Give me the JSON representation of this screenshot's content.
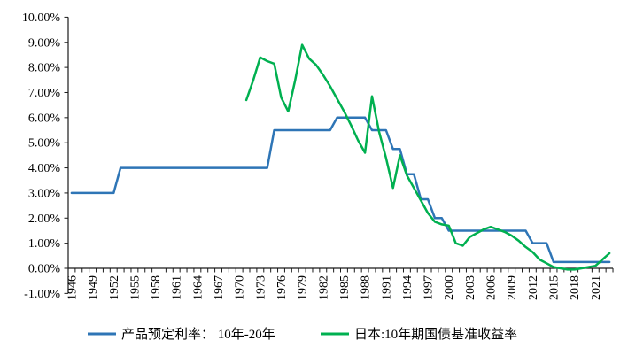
{
  "chart_data": {
    "type": "line",
    "title": "",
    "background_color": "#ffffff",
    "grid": "off",
    "legend_position": "bottom",
    "y_axis": {
      "min": -1,
      "max": 10,
      "step": 1,
      "tick_values": [
        10,
        9,
        8,
        7,
        6,
        5,
        4,
        3,
        2,
        1,
        0,
        -1
      ],
      "tick_labels": [
        "10.00%",
        "9.00%",
        "8.00%",
        "7.00%",
        "6.00%",
        "5.00%",
        "4.00%",
        "3.00%",
        "2.00%",
        "1.00%",
        "0.00%",
        "-1.00%"
      ]
    },
    "x_axis": {
      "first_year": 1946,
      "last_year": 2023,
      "tick_interval_years": 1,
      "label_interval_years": 3,
      "tick_label_years": [
        1946,
        1949,
        1952,
        1955,
        1958,
        1961,
        1964,
        1967,
        1970,
        1973,
        1976,
        1979,
        1982,
        1985,
        1988,
        1991,
        1994,
        1997,
        2000,
        2003,
        2006,
        2009,
        2012,
        2015,
        2018,
        2021
      ]
    },
    "series": [
      {
        "name": "产品预定利率： 10年-20年",
        "color": "#2E75B6",
        "style": "step",
        "segments": [
          {
            "from": 1946,
            "to": 1952,
            "value": 3.0
          },
          {
            "from": 1953,
            "to": 1974,
            "value": 4.0
          },
          {
            "from": 1975,
            "to": 1983,
            "value": 5.5
          },
          {
            "from": 1984,
            "to": 1988,
            "value": 6.0
          },
          {
            "from": 1989,
            "to": 1991,
            "value": 5.5
          },
          {
            "from": 1992,
            "to": 1993,
            "value": 4.75
          },
          {
            "from": 1994,
            "to": 1995,
            "value": 3.75
          },
          {
            "from": 1996,
            "to": 1997,
            "value": 2.75
          },
          {
            "from": 1998,
            "to": 1999,
            "value": 2.0
          },
          {
            "from": 2000,
            "to": 2011,
            "value": 1.5
          },
          {
            "from": 2012,
            "to": 2014,
            "value": 1.0
          },
          {
            "from": 2015,
            "to": 2023,
            "value": 0.25
          }
        ]
      },
      {
        "name": "日本:10年期国债基准收益率",
        "color": "#00B050",
        "style": "line",
        "points": [
          [
            1971,
            6.7
          ],
          [
            1972,
            7.5
          ],
          [
            1973,
            8.4
          ],
          [
            1974,
            8.25
          ],
          [
            1975,
            8.15
          ],
          [
            1976,
            6.8
          ],
          [
            1977,
            6.25
          ],
          [
            1978,
            7.5
          ],
          [
            1979,
            8.9
          ],
          [
            1980,
            8.35
          ],
          [
            1981,
            8.1
          ],
          [
            1982,
            7.7
          ],
          [
            1983,
            7.25
          ],
          [
            1984,
            6.75
          ],
          [
            1985,
            6.25
          ],
          [
            1986,
            5.7
          ],
          [
            1987,
            5.1
          ],
          [
            1988,
            4.6
          ],
          [
            1989,
            6.85
          ],
          [
            1990,
            5.45
          ],
          [
            1991,
            4.4
          ],
          [
            1992,
            3.2
          ],
          [
            1993,
            4.5
          ],
          [
            1994,
            3.7
          ],
          [
            1995,
            3.2
          ],
          [
            1996,
            2.7
          ],
          [
            1997,
            2.2
          ],
          [
            1998,
            1.85
          ],
          [
            1999,
            1.75
          ],
          [
            2000,
            1.7
          ],
          [
            2001,
            1.0
          ],
          [
            2002,
            0.9
          ],
          [
            2003,
            1.25
          ],
          [
            2004,
            1.4
          ],
          [
            2005,
            1.55
          ],
          [
            2006,
            1.65
          ],
          [
            2007,
            1.55
          ],
          [
            2008,
            1.45
          ],
          [
            2009,
            1.3
          ],
          [
            2010,
            1.1
          ],
          [
            2011,
            0.85
          ],
          [
            2012,
            0.65
          ],
          [
            2013,
            0.35
          ],
          [
            2014,
            0.2
          ],
          [
            2015,
            0.05
          ],
          [
            2016,
            0.0
          ],
          [
            2017,
            -0.05
          ],
          [
            2018,
            -0.05
          ],
          [
            2019,
            0.0
          ],
          [
            2020,
            0.05
          ],
          [
            2021,
            0.1
          ],
          [
            2022,
            0.35
          ],
          [
            2023,
            0.6
          ]
        ]
      }
    ]
  }
}
